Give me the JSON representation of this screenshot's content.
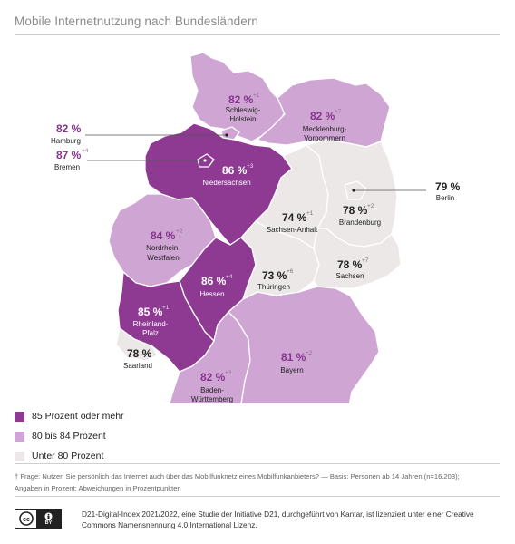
{
  "title": "Mobile Internetnutzung nach Bundesländern",
  "colors": {
    "high": "#8e3a93",
    "mid": "#cfa5d3",
    "low": "#ece8e8",
    "border": "#ffffff"
  },
  "legend": [
    {
      "label": "85 Prozent oder mehr",
      "color": "#8e3a93"
    },
    {
      "label": "80 bis 84 Prozent",
      "color": "#cfa5d3"
    },
    {
      "label": "Unter 80 Prozent",
      "color": "#ece8e8"
    }
  ],
  "regions": {
    "schleswig_holstein": {
      "pct": "82 %",
      "change": "+1",
      "name1": "Schleswig-",
      "name2": "Holstein"
    },
    "hamburg": {
      "pct": "82 %",
      "name1": "Hamburg"
    },
    "bremen": {
      "pct": "87 %",
      "change": "+4",
      "name1": "Bremen"
    },
    "mecklenburg": {
      "pct": "82 %",
      "change": "+7",
      "name1": "Mecklenburg-",
      "name2": "Vorpommern"
    },
    "niedersachsen": {
      "pct": "86 %",
      "change": "+3",
      "name1": "Niedersachsen"
    },
    "berlin": {
      "pct": "79 %",
      "name1": "Berlin"
    },
    "sachsen_anhalt": {
      "pct": "74 %",
      "change": "+1",
      "name1": "Sachsen-Anhalt"
    },
    "brandenburg": {
      "pct": "78 %",
      "change": "+2",
      "name1": "Brandenburg"
    },
    "nrw": {
      "pct": "84 %",
      "change": "+2",
      "name1": "Nordrhein-",
      "name2": "Westfalen"
    },
    "thueringen": {
      "pct": "73 %",
      "change": "+6",
      "name1": "Thüringen"
    },
    "sachsen": {
      "pct": "78 %",
      "change": "+7",
      "name1": "Sachsen"
    },
    "hessen": {
      "pct": "86 %",
      "change": "+4",
      "name1": "Hessen"
    },
    "rheinland_pfalz": {
      "pct": "85 %",
      "change": "+1",
      "name1": "Rheinland-",
      "name2": "Pfalz"
    },
    "saarland": {
      "pct": "78 %",
      "name1": "Saarland"
    },
    "bayern": {
      "pct": "81 %",
      "change": "+2",
      "name1": "Bayern"
    },
    "bw": {
      "pct": "82 %",
      "change": "+3",
      "name1": "Baden-",
      "name2": "Württemberg"
    }
  },
  "footnote_line1": "† Frage: Nutzen Sie persönlich das Internet auch über das Mobilfunknetz eines Mobilfunkanbieters? — Basis: Personen ab 14 Jahren (n=16.203);",
  "footnote_line2": "Angaben in Prozent; Abweichungen in Prozentpunkten",
  "cc_label": "cc",
  "cc_by": "BY",
  "license": "D21-Digital-Index 2021/2022, eine Studie der Initiative D21, durchgeführt von Kantar, ist lizenziert unter einer Creative Commons Namensnennung 4.0 International Lizenz."
}
